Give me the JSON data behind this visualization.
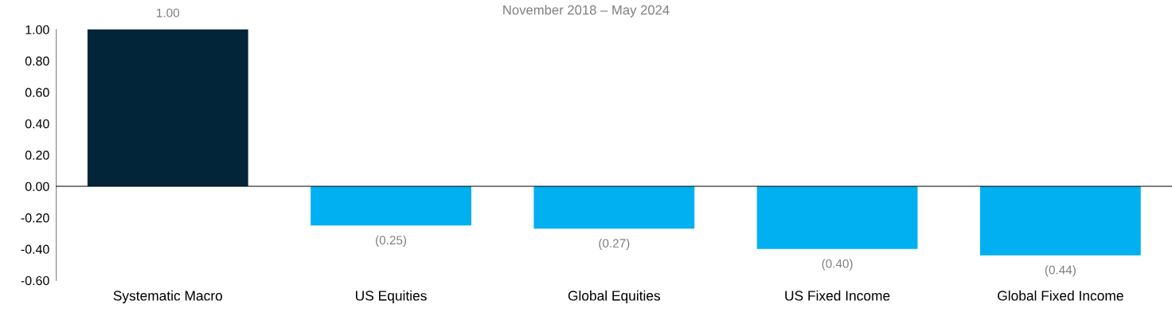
{
  "chart_data": {
    "type": "bar",
    "subtitle": "November 2018 – May 2024",
    "categories": [
      "Systematic Macro",
      "US Equities",
      "Global Equities",
      "US Fixed Income",
      "Global Fixed Income"
    ],
    "values": [
      1.0,
      -0.25,
      -0.27,
      -0.4,
      -0.44
    ],
    "colors": [
      "#022539",
      "#00b0f0",
      "#00b0f0",
      "#00b0f0",
      "#00b0f0"
    ],
    "value_labels": [
      "1.00",
      "(0.25)",
      "(0.27)",
      "(0.40)",
      "(0.44)"
    ],
    "ylim": [
      -0.6,
      1.0
    ],
    "yticks": [
      {
        "value": 1.0,
        "label": "1.00"
      },
      {
        "value": 0.8,
        "label": "0.80"
      },
      {
        "value": 0.6,
        "label": "0.60"
      },
      {
        "value": 0.4,
        "label": "0.40"
      },
      {
        "value": 0.2,
        "label": "0.20"
      },
      {
        "value": 0.0,
        "label": "0.00"
      },
      {
        "value": -0.2,
        "label": "-0.20"
      },
      {
        "value": -0.4,
        "label": "-0.40"
      },
      {
        "value": -0.6,
        "label": "-0.60"
      }
    ],
    "legend": false
  }
}
